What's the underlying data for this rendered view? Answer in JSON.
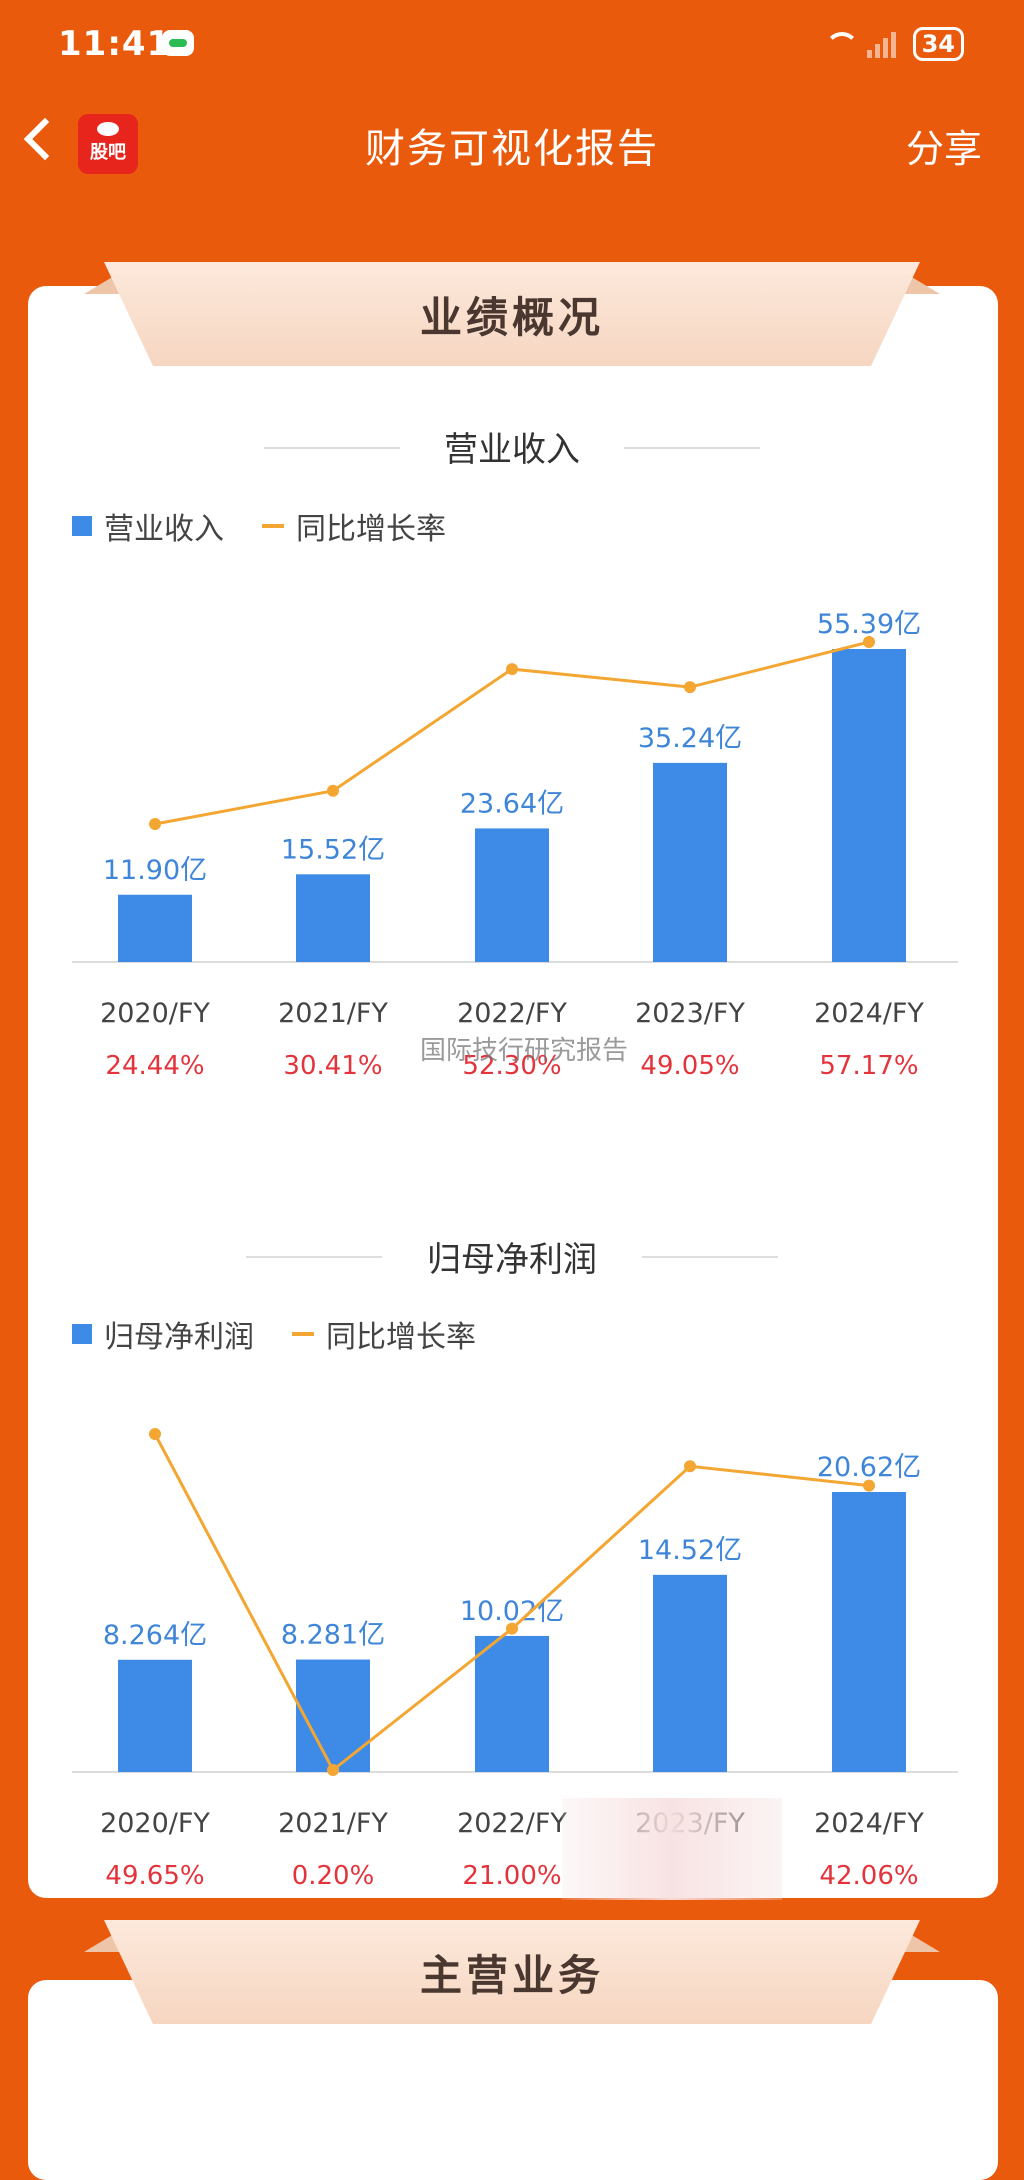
{
  "status_bar": {
    "time": "11:41",
    "battery": "34"
  },
  "nav": {
    "title": "财务可视化报告",
    "share_label": "分享",
    "logo_text": "股吧"
  },
  "section_main_title": "业绩概况",
  "section_next_title": "主营业务",
  "watermark": "国际技行研究报告",
  "colors": {
    "bar": "#3d8be6",
    "line": "#f4a632",
    "rate_text": "#e3343c",
    "value_label": "#3f86d9"
  },
  "revenue": {
    "title": "营业收入",
    "legend_bar": "营业收入",
    "legend_line": "同比增长率"
  },
  "profit": {
    "title": "归母净利润",
    "legend_bar": "归母净利润",
    "legend_line": "同比增长率"
  },
  "chart_data": [
    {
      "type": "bar",
      "title": "营业收入",
      "categories": [
        "2020/FY",
        "2021/FY",
        "2022/FY",
        "2023/FY",
        "2024/FY"
      ],
      "series": [
        {
          "name": "营业收入",
          "type": "bar",
          "values": [
            11.9,
            15.52,
            23.64,
            35.24,
            55.39
          ],
          "labels": [
            "11.90亿",
            "15.52亿",
            "23.64亿",
            "35.24亿",
            "55.39亿"
          ]
        },
        {
          "name": "同比增长率",
          "type": "line",
          "values": [
            24.44,
            30.41,
            52.3,
            49.05,
            57.17
          ],
          "labels": [
            "24.44%",
            "30.41%",
            "52.30%",
            "49.05%",
            "57.17%"
          ]
        }
      ],
      "legend": "top-left"
    },
    {
      "type": "bar",
      "title": "归母净利润",
      "categories": [
        "2020/FY",
        "2021/FY",
        "2022/FY",
        "2023/FY",
        "2024/FY"
      ],
      "series": [
        {
          "name": "归母净利润",
          "type": "bar",
          "values": [
            8.264,
            8.281,
            10.02,
            14.52,
            20.62
          ],
          "labels": [
            "8.264亿",
            "8.281亿",
            "10.02亿",
            "14.52亿",
            "20.62亿"
          ]
        },
        {
          "name": "同比增长率",
          "type": "line",
          "values": [
            49.65,
            0.2,
            21.0,
            44.9,
            42.06
          ],
          "labels": [
            "49.65%",
            "0.20%",
            "21.00%",
            "",
            "42.06%"
          ]
        }
      ],
      "legend": "top-left"
    }
  ]
}
